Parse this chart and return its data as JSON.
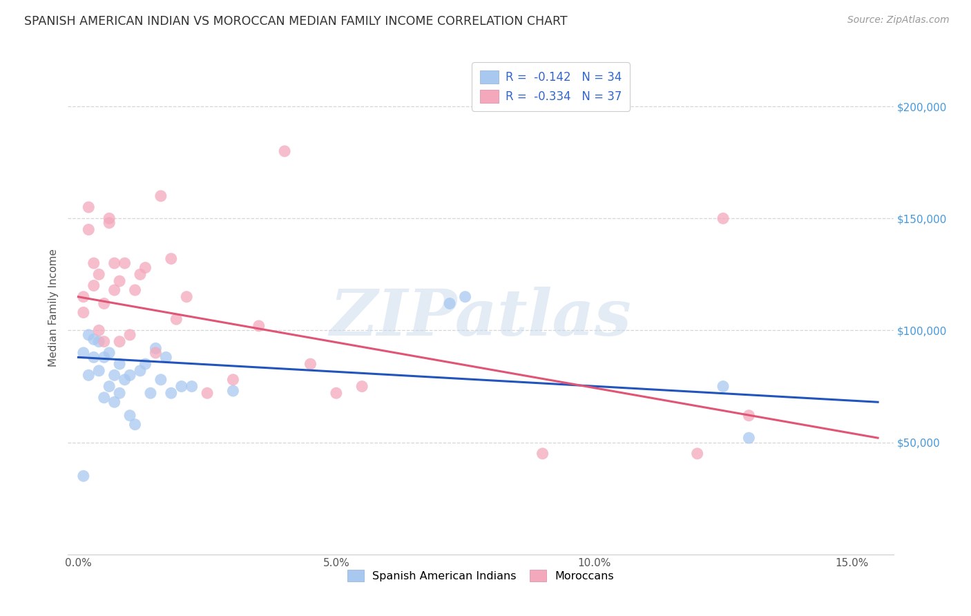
{
  "title": "SPANISH AMERICAN INDIAN VS MOROCCAN MEDIAN FAMILY INCOME CORRELATION CHART",
  "source": "Source: ZipAtlas.com",
  "ylabel": "Median Family Income",
  "xlabel_ticks": [
    "0.0%",
    "5.0%",
    "10.0%",
    "15.0%"
  ],
  "xlabel_vals": [
    0.0,
    0.05,
    0.1,
    0.15
  ],
  "ytick_labels": [
    "$50,000",
    "$100,000",
    "$150,000",
    "$200,000"
  ],
  "ytick_vals": [
    50000,
    100000,
    150000,
    200000
  ],
  "xlim": [
    -0.002,
    0.158
  ],
  "ylim": [
    0,
    220000
  ],
  "blue_scatter_x": [
    0.001,
    0.001,
    0.002,
    0.002,
    0.003,
    0.003,
    0.004,
    0.004,
    0.005,
    0.005,
    0.006,
    0.006,
    0.007,
    0.007,
    0.008,
    0.008,
    0.009,
    0.01,
    0.01,
    0.011,
    0.012,
    0.013,
    0.014,
    0.015,
    0.016,
    0.017,
    0.018,
    0.02,
    0.022,
    0.03,
    0.072,
    0.075,
    0.125,
    0.13
  ],
  "blue_scatter_y": [
    35000,
    90000,
    80000,
    98000,
    88000,
    96000,
    82000,
    95000,
    70000,
    88000,
    75000,
    90000,
    68000,
    80000,
    72000,
    85000,
    78000,
    62000,
    80000,
    58000,
    82000,
    85000,
    72000,
    92000,
    78000,
    88000,
    72000,
    75000,
    75000,
    73000,
    112000,
    115000,
    75000,
    52000
  ],
  "pink_scatter_x": [
    0.001,
    0.001,
    0.002,
    0.002,
    0.003,
    0.003,
    0.004,
    0.004,
    0.005,
    0.005,
    0.006,
    0.006,
    0.007,
    0.007,
    0.008,
    0.008,
    0.009,
    0.01,
    0.011,
    0.012,
    0.013,
    0.015,
    0.016,
    0.018,
    0.019,
    0.021,
    0.025,
    0.03,
    0.035,
    0.04,
    0.045,
    0.05,
    0.055,
    0.09,
    0.12,
    0.125,
    0.13
  ],
  "pink_scatter_y": [
    108000,
    115000,
    145000,
    155000,
    130000,
    120000,
    125000,
    100000,
    112000,
    95000,
    148000,
    150000,
    130000,
    118000,
    122000,
    95000,
    130000,
    98000,
    118000,
    125000,
    128000,
    90000,
    160000,
    132000,
    105000,
    115000,
    72000,
    78000,
    102000,
    180000,
    85000,
    72000,
    75000,
    45000,
    45000,
    150000,
    62000
  ],
  "blue_line_x0": 0.0,
  "blue_line_y0": 88000,
  "blue_line_x1": 0.155,
  "blue_line_y1": 68000,
  "pink_line_x0": 0.0,
  "pink_line_y0": 115000,
  "pink_line_x1": 0.155,
  "pink_line_y1": 52000,
  "blue_scatter_color": "#a8c8f0",
  "pink_scatter_color": "#f4a8bc",
  "blue_line_color": "#2255bb",
  "pink_line_color": "#e05575",
  "watermark_text": "ZIPatlas",
  "legend1_label": "R =  -0.142   N = 34",
  "legend2_label": "R =  -0.334   N = 37",
  "legend1_patch_color": "#a8c8f0",
  "legend2_patch_color": "#f4a8bc",
  "bottom_legend1": "Spanish American Indians",
  "bottom_legend2": "Moroccans",
  "background_color": "#ffffff",
  "grid_color": "#cccccc",
  "title_color": "#333333",
  "source_color": "#999999",
  "axis_label_color": "#555555",
  "right_ytick_color": "#4499dd",
  "tick_label_color": "#555555"
}
